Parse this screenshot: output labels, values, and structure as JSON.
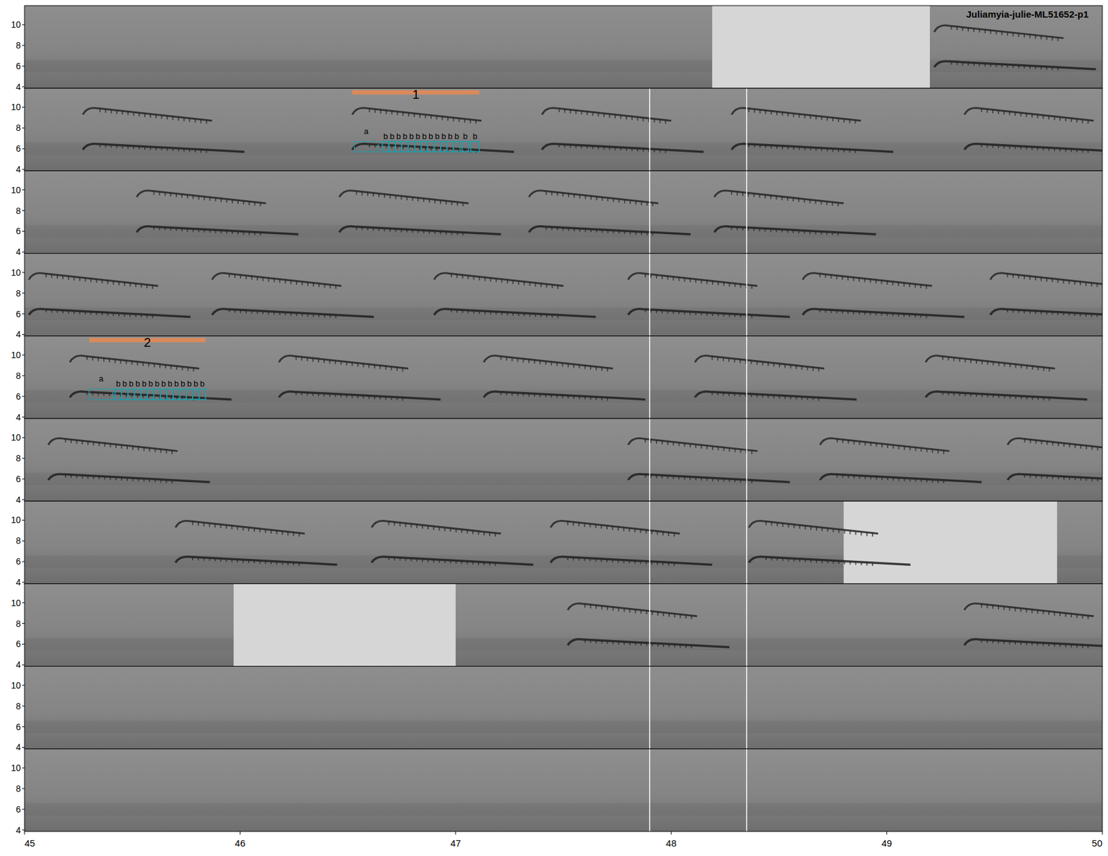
{
  "chart_data": {
    "type": "spectrogram",
    "title": "Juliamyia-julie-ML51652-p1",
    "xlim": [
      45,
      50
    ],
    "xticks": [
      45,
      46,
      47,
      48,
      49,
      50
    ],
    "ylim": [
      3.86,
      11.84
    ],
    "yticks": [
      4,
      6,
      8,
      10
    ],
    "vertical_lines": [
      47.9,
      48.35
    ],
    "rows": [
      {
        "songs": [
          49.22
        ],
        "blanks": [
          [
            48.19,
            49.2
          ]
        ]
      },
      {
        "songs": [
          45.27,
          46.52,
          47.4,
          48.28,
          49.36
        ],
        "blanks": []
      },
      {
        "songs": [
          45.52,
          46.46,
          47.34,
          48.2
        ],
        "blanks": []
      },
      {
        "songs": [
          45.02,
          45.87,
          46.9,
          47.8,
          48.61,
          49.48
        ],
        "blanks": []
      },
      {
        "songs": [
          45.21,
          46.18,
          47.13,
          48.11,
          49.18
        ],
        "blanks": []
      },
      {
        "songs": [
          45.11,
          47.8,
          48.69,
          49.56
        ],
        "blanks": []
      },
      {
        "songs": [
          45.7,
          46.61,
          47.44,
          48.36
        ],
        "blanks": [
          [
            48.8,
            49.79
          ]
        ]
      },
      {
        "songs": [
          47.52,
          49.36
        ],
        "blanks": [
          [
            45.97,
            47.0
          ]
        ]
      },
      {
        "songs": [],
        "blanks": []
      },
      {
        "songs": [],
        "blanks": []
      }
    ],
    "annotations": [
      {
        "label": "1",
        "row": 1,
        "start": 46.52,
        "end": 47.11,
        "flim": [
          5.7,
          6.7
        ],
        "syllables": [
          {
            "label": "a",
            "start": 46.53,
            "end": 46.64
          },
          {
            "label": "b",
            "start": 46.66,
            "end": 46.69
          },
          {
            "label": "b",
            "start": 46.69,
            "end": 46.72
          },
          {
            "label": "b",
            "start": 46.72,
            "end": 46.75
          },
          {
            "label": "b",
            "start": 46.75,
            "end": 46.78
          },
          {
            "label": "b",
            "start": 46.78,
            "end": 46.81
          },
          {
            "label": "b",
            "start": 46.81,
            "end": 46.84
          },
          {
            "label": "b",
            "start": 46.84,
            "end": 46.87
          },
          {
            "label": "b",
            "start": 46.87,
            "end": 46.9
          },
          {
            "label": "b",
            "start": 46.9,
            "end": 46.93
          },
          {
            "label": "b",
            "start": 46.93,
            "end": 46.96
          },
          {
            "label": "b",
            "start": 46.96,
            "end": 46.99
          },
          {
            "label": "b",
            "start": 46.99,
            "end": 47.02
          },
          {
            "label": "b",
            "start": 47.03,
            "end": 47.06
          },
          {
            "label": "b",
            "start": 47.07,
            "end": 47.11
          }
        ]
      },
      {
        "label": "2",
        "row": 4,
        "start": 45.3,
        "end": 45.84,
        "flim": [
          5.7,
          6.7
        ],
        "syllables": [
          {
            "label": "a",
            "start": 45.3,
            "end": 45.41
          },
          {
            "label": "b",
            "start": 45.42,
            "end": 45.45
          },
          {
            "label": "b",
            "start": 45.45,
            "end": 45.48
          },
          {
            "label": "b",
            "start": 45.48,
            "end": 45.51
          },
          {
            "label": "b",
            "start": 45.51,
            "end": 45.54
          },
          {
            "label": "b",
            "start": 45.54,
            "end": 45.57
          },
          {
            "label": "b",
            "start": 45.57,
            "end": 45.6
          },
          {
            "label": "b",
            "start": 45.6,
            "end": 45.63
          },
          {
            "label": "b",
            "start": 45.63,
            "end": 45.66
          },
          {
            "label": "b",
            "start": 45.66,
            "end": 45.69
          },
          {
            "label": "b",
            "start": 45.69,
            "end": 45.72
          },
          {
            "label": "b",
            "start": 45.72,
            "end": 45.75
          },
          {
            "label": "b",
            "start": 45.75,
            "end": 45.78
          },
          {
            "label": "b",
            "start": 45.78,
            "end": 45.81
          },
          {
            "label": "b",
            "start": 45.81,
            "end": 45.84
          }
        ]
      }
    ]
  }
}
